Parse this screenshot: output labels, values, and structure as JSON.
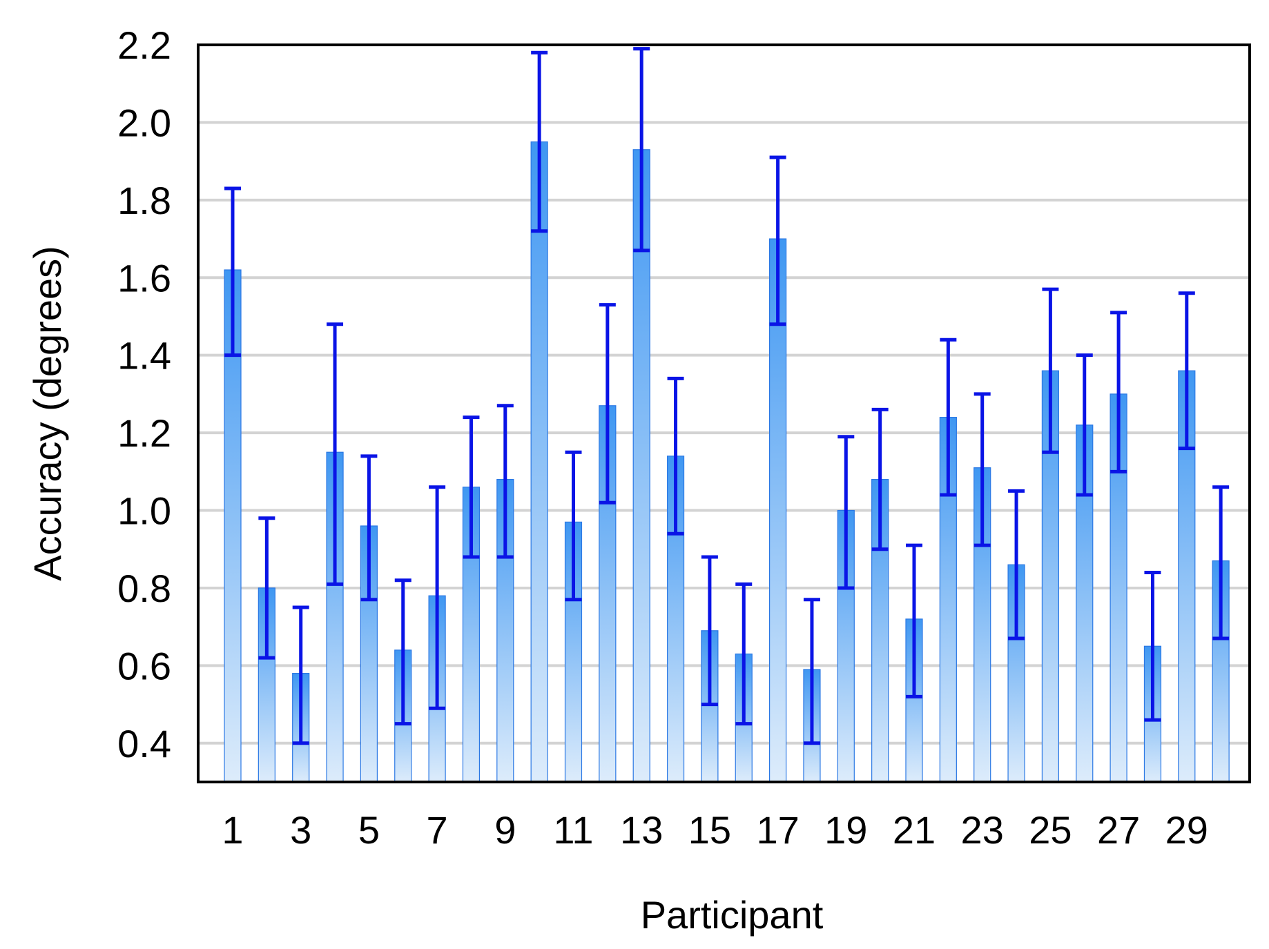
{
  "chart_data": {
    "type": "bar",
    "xlabel": "Participant",
    "ylabel": "Accuracy (degrees)",
    "ylim": [
      0.3,
      2.2
    ],
    "y_ticks": [
      "0.4",
      "0.6",
      "0.8",
      "1.0",
      "1.2",
      "1.4",
      "1.6",
      "1.8",
      "2.0",
      "2.2"
    ],
    "x_tick_labels": [
      "1",
      "3",
      "5",
      "7",
      "9",
      "11",
      "13",
      "15",
      "17",
      "19",
      "21",
      "23",
      "25",
      "27",
      "29"
    ],
    "categories": [
      "1",
      "2",
      "3",
      "4",
      "5",
      "6",
      "7",
      "8",
      "9",
      "10",
      "11",
      "12",
      "13",
      "14",
      "15",
      "16",
      "17",
      "18",
      "19",
      "20",
      "21",
      "22",
      "23",
      "24",
      "25",
      "26",
      "27",
      "28",
      "29",
      "30"
    ],
    "values": [
      1.62,
      0.8,
      0.58,
      1.15,
      0.96,
      0.64,
      0.78,
      1.06,
      1.08,
      1.95,
      0.97,
      1.27,
      1.93,
      1.14,
      0.69,
      0.63,
      1.7,
      0.59,
      1.0,
      1.08,
      0.72,
      1.24,
      1.11,
      0.86,
      1.36,
      1.22,
      1.3,
      0.65,
      1.36,
      0.87
    ],
    "error_low": [
      1.4,
      0.62,
      0.4,
      0.81,
      0.77,
      0.45,
      0.49,
      0.88,
      0.88,
      1.72,
      0.77,
      1.02,
      1.67,
      0.94,
      0.5,
      0.45,
      1.48,
      0.4,
      0.8,
      0.9,
      0.52,
      1.04,
      0.91,
      0.67,
      1.15,
      1.04,
      1.1,
      0.46,
      1.16,
      0.67
    ],
    "error_high": [
      1.83,
      0.98,
      0.75,
      1.48,
      1.14,
      0.82,
      1.06,
      1.24,
      1.27,
      2.18,
      1.15,
      1.53,
      2.19,
      1.34,
      0.88,
      0.81,
      1.91,
      0.77,
      1.19,
      1.26,
      0.91,
      1.44,
      1.3,
      1.05,
      1.57,
      1.4,
      1.51,
      0.84,
      1.56,
      1.06
    ],
    "grid": true,
    "colors": {
      "bar_top": "#3f97f2",
      "bar_bottom": "#ddecfb",
      "bar_edge": "#2b78e4",
      "error_bar": "#0a14e6",
      "grid": "#d3d3d3",
      "frame": "#000000"
    }
  }
}
